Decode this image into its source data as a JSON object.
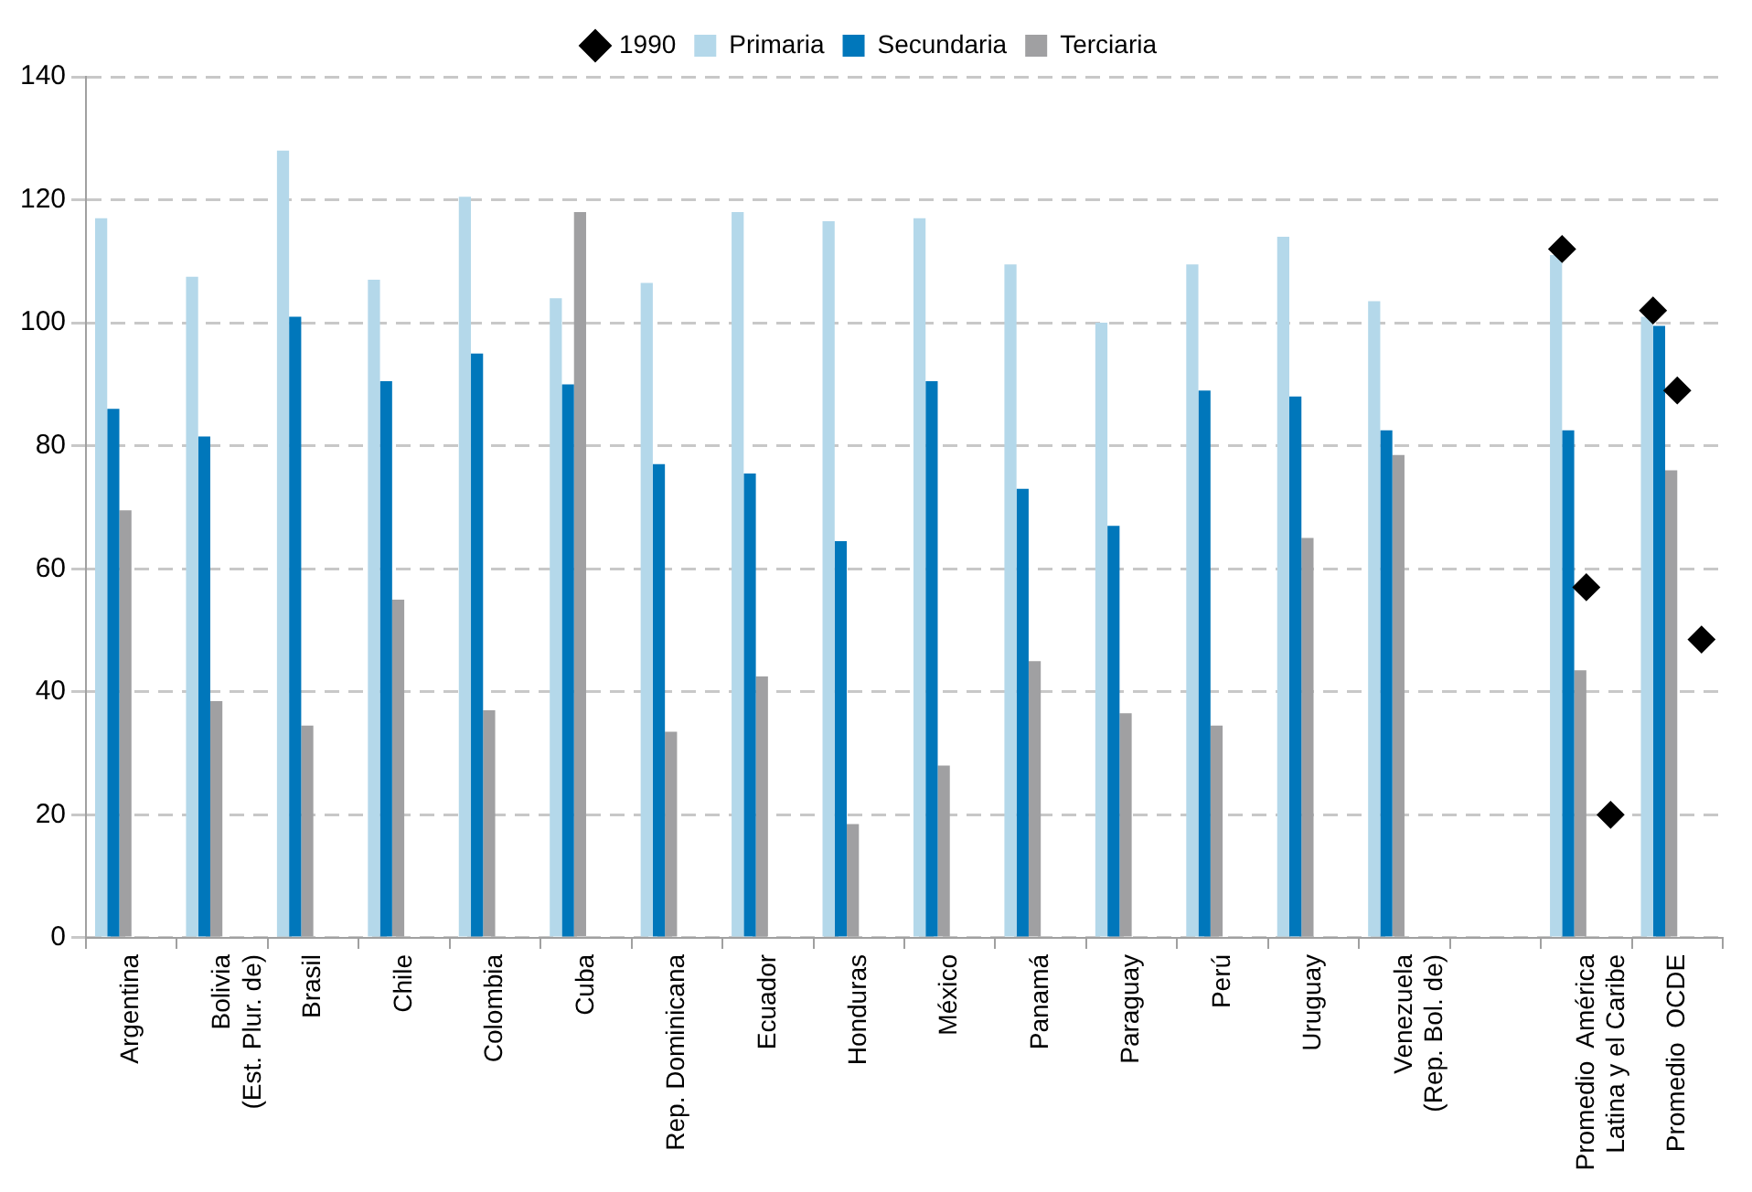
{
  "chart_data": {
    "type": "bar",
    "categories": [
      "Argentina",
      "Bolivia\n(Est. Plur. de)",
      "Brasil",
      "Chile",
      "Colombia",
      "Cuba",
      "Rep. Dominicana",
      "Ecuador",
      "Honduras",
      "México",
      "Panamá",
      "Paraguay",
      "Perú",
      "Uruguay",
      "Venezuela\n(Rep. Bol. de)",
      null,
      "Promedio  América\nLatina y el Caribe",
      "Promedio  OCDE"
    ],
    "series": [
      {
        "name": "Primaria",
        "color": "#b4d8ea",
        "values": [
          117,
          107.5,
          128,
          107,
          120.5,
          104,
          106.5,
          118,
          116.5,
          117,
          109.5,
          100,
          109.5,
          114,
          103.5,
          null,
          111,
          101
        ]
      },
      {
        "name": "Secundaria",
        "color": "#0077bb",
        "values": [
          86,
          81.5,
          101,
          90.5,
          95,
          90,
          77,
          75.5,
          64.5,
          90.5,
          73,
          67,
          89,
          88,
          82.5,
          null,
          82.5,
          99.5
        ]
      },
      {
        "name": "Terciaria",
        "color": "#a0a0a2",
        "values": [
          69.5,
          38.5,
          34.5,
          55,
          37,
          118,
          33.5,
          42.5,
          18.5,
          28,
          45,
          36.5,
          34.5,
          65,
          78.5,
          null,
          43.5,
          76
        ]
      },
      {
        "name": "1990",
        "type": "scatter",
        "marker": "diamond",
        "color": "#000000",
        "x": [
          "Promedio  América\nLatina y el Caribe",
          "Promedio  América\nLatina y el Caribe",
          "Promedio  América\nLatina y el Caribe",
          "Promedio  OCDE",
          "Promedio  OCDE",
          "Promedio  OCDE"
        ],
        "values": [
          112,
          57,
          20,
          102,
          89,
          48.5
        ]
      }
    ],
    "ylim": [
      0,
      140
    ],
    "yticks": [
      0,
      20,
      40,
      60,
      80,
      100,
      120,
      140
    ],
    "grid": "y",
    "legend": "top"
  }
}
